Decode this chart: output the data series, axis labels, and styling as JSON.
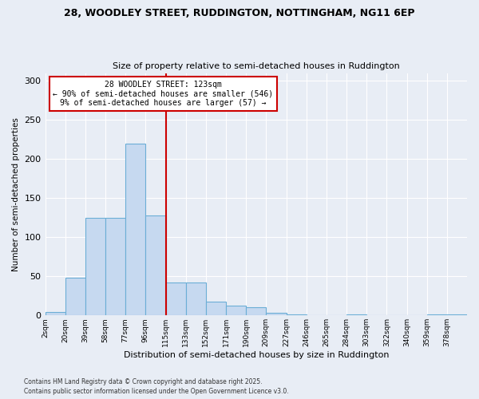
{
  "title1": "28, WOODLEY STREET, RUDDINGTON, NOTTINGHAM, NG11 6EP",
  "title2": "Size of property relative to semi-detached houses in Ruddington",
  "xlabel": "Distribution of semi-detached houses by size in Ruddington",
  "ylabel": "Number of semi-detached properties",
  "property_size": 6,
  "annotation_title": "28 WOODLEY STREET: 123sqm",
  "annotation_line1": "← 90% of semi-detached houses are smaller (546)",
  "annotation_line2": "9% of semi-detached houses are larger (57) →",
  "footnote1": "Contains HM Land Registry data © Crown copyright and database right 2025.",
  "footnote2": "Contains public sector information licensed under the Open Government Licence v3.0.",
  "bar_color": "#c6d9f0",
  "bar_edge_color": "#6baed6",
  "vline_color": "#cc0000",
  "background_color": "#e8edf5",
  "annotation_box_color": "#ffffff",
  "annotation_box_edge": "#cc0000",
  "categories": [
    "2sqm",
    "20sqm",
    "39sqm",
    "58sqm",
    "77sqm",
    "96sqm",
    "115sqm",
    "133sqm",
    "152sqm",
    "171sqm",
    "190sqm",
    "209sqm",
    "227sqm",
    "246sqm",
    "265sqm",
    "284sqm",
    "303sqm",
    "322sqm",
    "340sqm",
    "359sqm",
    "378sqm"
  ],
  "values": [
    4,
    48,
    125,
    125,
    220,
    128,
    42,
    42,
    18,
    13,
    10,
    3,
    1,
    0,
    0,
    1,
    0,
    0,
    0,
    1,
    1
  ],
  "ylim": [
    0,
    310
  ],
  "yticks": [
    0,
    50,
    100,
    150,
    200,
    250,
    300
  ]
}
